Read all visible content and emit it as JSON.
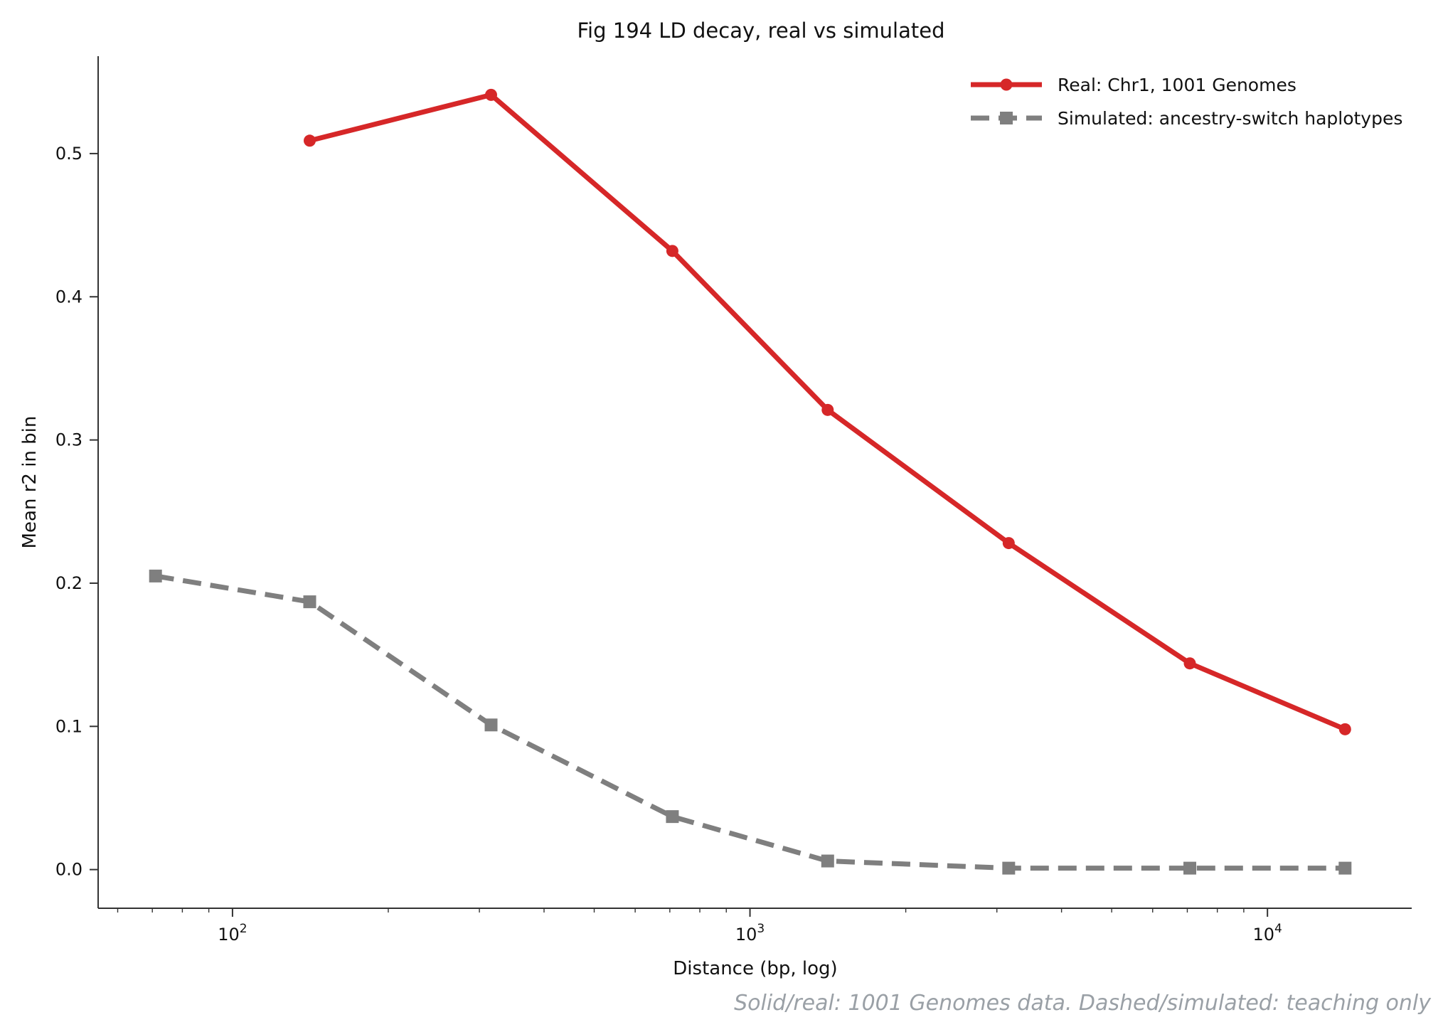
{
  "chart_data": {
    "type": "line",
    "title": "Fig 194  LD decay, real vs simulated",
    "xlabel": "Distance (bp, log)",
    "ylabel": "Mean r2 in bin",
    "xscale": "log",
    "xlim": [
      55,
      19000
    ],
    "ylim": [
      -0.027,
      0.568
    ],
    "x_major_ticks": [
      100,
      1000,
      10000
    ],
    "x_tick_labels": [
      {
        "base": "10",
        "exp": "2"
      },
      {
        "base": "10",
        "exp": "3"
      },
      {
        "base": "10",
        "exp": "4"
      }
    ],
    "y_ticks": [
      0.0,
      0.1,
      0.2,
      0.3,
      0.4,
      0.5
    ],
    "y_tick_labels": [
      "0.0",
      "0.1",
      "0.2",
      "0.3",
      "0.4",
      "0.5"
    ],
    "grid": false,
    "legend_position": "top-right",
    "series": [
      {
        "name": "Real: Chr1, 1001 Genomes",
        "color": "#d62728",
        "style": "solid",
        "marker": "circle",
        "x": [
          141,
          316,
          708,
          1413,
          3162,
          7079,
          14125
        ],
        "y": [
          0.509,
          0.541,
          0.432,
          0.321,
          0.228,
          0.144,
          0.098
        ]
      },
      {
        "name": "Simulated: ancestry-switch haplotypes",
        "color": "#7f7f7f",
        "style": "dashed",
        "marker": "square",
        "x": [
          71,
          141,
          316,
          708,
          1413,
          3162,
          7079,
          14125
        ],
        "y": [
          0.205,
          0.187,
          0.101,
          0.037,
          0.006,
          0.001,
          0.001,
          0.001
        ]
      }
    ],
    "footnote": "Solid/real: 1001 Genomes data. Dashed/simulated: teaching only"
  }
}
